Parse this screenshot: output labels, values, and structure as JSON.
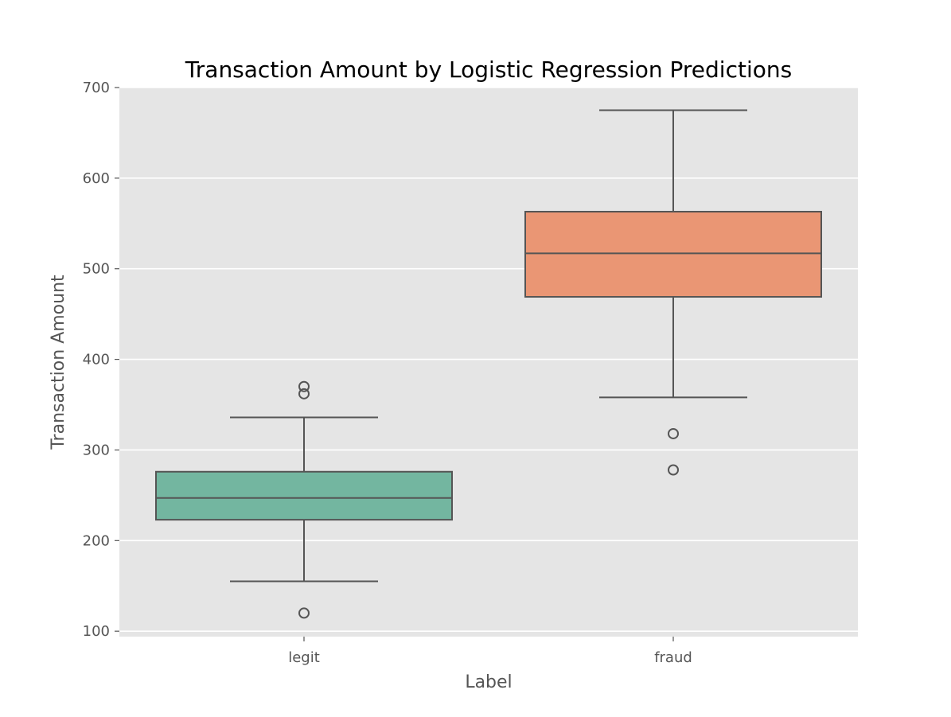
{
  "chart_data": {
    "type": "box",
    "title": "Transaction Amount by Logistic Regression Predictions",
    "xlabel": "Label",
    "ylabel": "Transaction Amount",
    "ylim": [
      94,
      700
    ],
    "yticks": [
      100,
      200,
      300,
      400,
      500,
      600,
      700
    ],
    "grid": true,
    "categories": [
      "legit",
      "fraud"
    ],
    "boxes": [
      {
        "name": "legit",
        "whisker_low": 155,
        "q1": 223,
        "median": 247,
        "q3": 276,
        "whisker_high": 336,
        "outliers": [
          120,
          362,
          370
        ],
        "color": "#73b6a0"
      },
      {
        "name": "fraud",
        "whisker_low": 358,
        "q1": 469,
        "median": 517,
        "q3": 563,
        "whisker_high": 675,
        "outliers": [
          278,
          318
        ],
        "color": "#ea9674"
      }
    ],
    "colors": {
      "background": "#e5e5e5",
      "grid": "#ffffff",
      "line": "#555555"
    }
  }
}
